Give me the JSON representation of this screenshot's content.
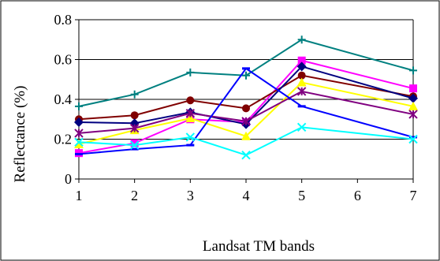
{
  "chart_data": {
    "type": "line",
    "title": "",
    "xlabel": "Landsat TM bands",
    "ylabel": "Reflectance (%)",
    "x_ticks": [
      "1",
      "2",
      "3",
      "4",
      "5",
      "6",
      "7"
    ],
    "y_ticks": [
      "0",
      "0.2",
      "0.4",
      "0.6",
      "0.8"
    ],
    "xlim": [
      1,
      7
    ],
    "ylim": [
      0,
      0.8
    ],
    "grid": "horizontal",
    "legend": "none",
    "series": [
      {
        "color": "#008080",
        "marker": "plus",
        "x": [
          1,
          2,
          3,
          4,
          5,
          7
        ],
        "values": [
          0.365,
          0.425,
          0.535,
          0.52,
          0.7,
          0.545
        ]
      },
      {
        "color": "#FF00FF",
        "marker": "square",
        "x": [
          1,
          2,
          3,
          4,
          5,
          7
        ],
        "values": [
          0.13,
          0.18,
          0.3,
          0.285,
          0.595,
          0.455
        ]
      },
      {
        "color": "#800000",
        "marker": "circle",
        "x": [
          1,
          2,
          3,
          4,
          5,
          7
        ],
        "values": [
          0.3,
          0.32,
          0.395,
          0.355,
          0.52,
          0.415
        ]
      },
      {
        "color": "#000080",
        "marker": "diamond",
        "x": [
          1,
          2,
          3,
          4,
          5,
          7
        ],
        "values": [
          0.285,
          0.28,
          0.335,
          0.275,
          0.565,
          0.405
        ]
      },
      {
        "color": "#FFFF00",
        "marker": "triangle",
        "x": [
          1,
          2,
          3,
          4,
          5,
          7
        ],
        "values": [
          0.175,
          0.245,
          0.305,
          0.215,
          0.485,
          0.365
        ]
      },
      {
        "color": "#800080",
        "marker": "star",
        "x": [
          1,
          2,
          3,
          4,
          5,
          7
        ],
        "values": [
          0.23,
          0.255,
          0.33,
          0.29,
          0.44,
          0.325
        ]
      },
      {
        "color": "#0000FF",
        "marker": "dash",
        "x": [
          1,
          2,
          3,
          4,
          5,
          7
        ],
        "values": [
          0.125,
          0.15,
          0.17,
          0.555,
          0.365,
          0.21
        ]
      },
      {
        "color": "#00FFFF",
        "marker": "x",
        "x": [
          1,
          2,
          3,
          4,
          5,
          7
        ],
        "values": [
          0.185,
          0.17,
          0.21,
          0.12,
          0.26,
          0.2
        ]
      }
    ]
  }
}
